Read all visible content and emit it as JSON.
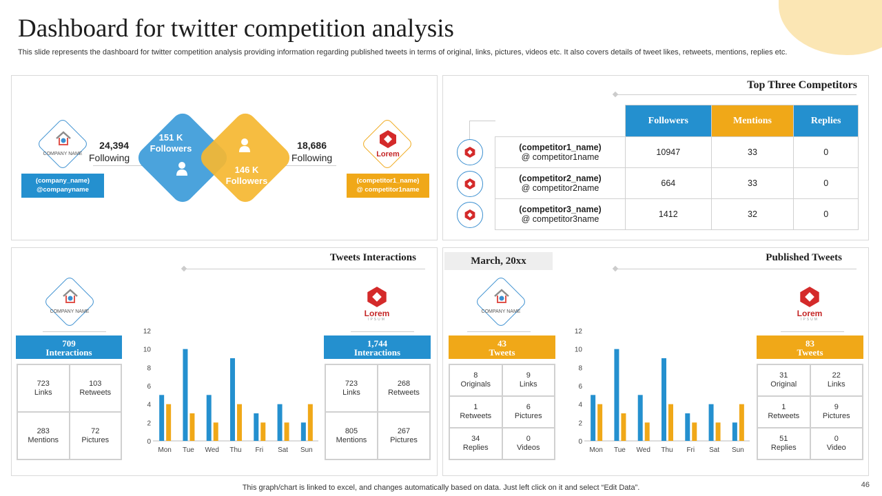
{
  "title": "Dashboard for twitter competition analysis",
  "subtitle": "This slide represents the dashboard for twitter competition analysis providing information regarding published tweets in terms of original, links, pictures, videos etc. It also covers details of tweet likes, retweets, mentions, replies etc.",
  "overview": {
    "company_logo_text": "COMPANY NAME",
    "company_tag": [
      "(company_name)",
      "@companyname"
    ],
    "company_following_value": "24,394",
    "company_following_label": "Following",
    "company_followers_value": "151 K",
    "company_followers_label": "Followers",
    "competitor_followers_value": "146 K",
    "competitor_followers_label": "Followers",
    "competitor_following_value": "18,686",
    "competitor_following_label": "Following",
    "competitor_logo_text": "Lorem",
    "competitor_tag": [
      "(competitor1_name)",
      "@ competitor1name"
    ]
  },
  "competitors": {
    "heading": "Top Three Competitors",
    "columns": [
      "Followers",
      "Mentions",
      "Replies"
    ],
    "rows": [
      {
        "name": "(competitor1_name)",
        "handle": "@ competitor1name",
        "followers": "10947",
        "mentions": "33",
        "replies": "0"
      },
      {
        "name": "(competitor2_name)",
        "handle": "@ competitor2name",
        "followers": "664",
        "mentions": "33",
        "replies": "0"
      },
      {
        "name": "(competitor3_name)",
        "handle": "@ competitor3name",
        "followers": "1412",
        "mentions": "32",
        "replies": "0"
      }
    ],
    "logo_text": "Lorem"
  },
  "interactions": {
    "heading": "Tweets Interactions",
    "company": {
      "value": "709",
      "label": "Interactions",
      "logo_text": "COMPANY NAME",
      "cells": [
        [
          "723",
          "Links"
        ],
        [
          "103",
          "Retweets"
        ],
        [
          "283",
          "Mentions"
        ],
        [
          "72",
          "Pictures"
        ]
      ]
    },
    "competitor": {
      "value": "1,744",
      "label": "Interactions",
      "logo_text": "Lorem",
      "logo_sub": "IPSUM",
      "cells": [
        [
          "723",
          "Links"
        ],
        [
          "268",
          "Retweets"
        ],
        [
          "805",
          "Mentions"
        ],
        [
          "267",
          "Pictures"
        ]
      ]
    }
  },
  "published": {
    "heading": "Published Tweets",
    "month": "March, 20xx",
    "company": {
      "value": "43",
      "label": "Tweets",
      "logo_text": "COMPANY NAME",
      "cells": [
        [
          "8",
          "Originals"
        ],
        [
          "9",
          "Links"
        ],
        [
          "1",
          "Retweets"
        ],
        [
          "6",
          "Pictures"
        ],
        [
          "34",
          "Replies"
        ],
        [
          "0",
          "Videos"
        ]
      ]
    },
    "competitor": {
      "value": "83",
      "label": "Tweets",
      "logo_text": "Lorem",
      "logo_sub": "IPSUM",
      "cells": [
        [
          "31",
          "Original"
        ],
        [
          "22",
          "Links"
        ],
        [
          "1",
          "Retweets"
        ],
        [
          "9",
          "Pictures"
        ],
        [
          "51",
          "Replies"
        ],
        [
          "0",
          "Video"
        ]
      ]
    }
  },
  "chart_data": [
    {
      "type": "bar",
      "categories": [
        "Mon",
        "Tue",
        "Wed",
        "Thu",
        "Fri",
        "Sat",
        "Sun"
      ],
      "series": [
        {
          "values": [
            5,
            10,
            5,
            9,
            3,
            4,
            2
          ]
        },
        {
          "values": [
            4,
            3,
            2,
            4,
            2,
            2,
            4
          ]
        }
      ],
      "ylim": [
        0,
        12
      ],
      "yticks": [
        0,
        2,
        4,
        6,
        8,
        10,
        12
      ],
      "grid": false
    },
    {
      "type": "bar",
      "categories": [
        "Mon",
        "Tue",
        "Wed",
        "Thu",
        "Fri",
        "Sat",
        "Sun"
      ],
      "series": [
        {
          "values": [
            5,
            10,
            5,
            9,
            3,
            4,
            2
          ]
        },
        {
          "values": [
            4,
            3,
            2,
            4,
            2,
            2,
            4
          ]
        }
      ],
      "ylim": [
        0,
        12
      ],
      "yticks": [
        0,
        2,
        4,
        6,
        8,
        10,
        12
      ],
      "grid": false
    }
  ],
  "colors": {
    "blue": "#2490cf",
    "orange": "#f0a818",
    "diamond_blue": "#4ba3dc",
    "diamond_orange": "#f5b731"
  },
  "footer": "This graph/chart is linked to excel,  and changes automatically based on data. Just left click on it and select “Edit Data”.",
  "page_number": "46"
}
